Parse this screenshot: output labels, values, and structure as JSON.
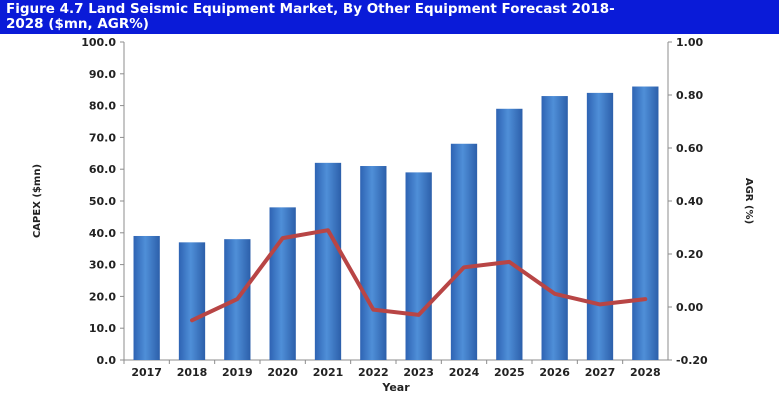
{
  "header": {
    "title": "Figure 4.7 Land Seismic Equipment Market, By Other Equipment Forecast 2018-\n2028 ($mn, AGR%)"
  },
  "colors": {
    "header_bg": "#0a1bd8",
    "bar": "#3a78c8",
    "line": "#b84545"
  },
  "chart_data": {
    "type": "bar",
    "title": "Figure 4.7 Land Seismic Equipment Market, By Other Equipment Forecast 2018-2028 ($mn, AGR%)",
    "xlabel": "Year",
    "ylabel": "CAPEX ($mn)",
    "y2label": "AGR (%)",
    "categories": [
      "2017",
      "2018",
      "2019",
      "2020",
      "2021",
      "2022",
      "2023",
      "2024",
      "2025",
      "2026",
      "2027",
      "2028"
    ],
    "series": [
      {
        "chart": "bar",
        "axis": "left",
        "values": [
          39.0,
          37.0,
          38.0,
          48.0,
          62.0,
          61.0,
          59.0,
          68.0,
          79.0,
          83.0,
          84.0,
          86.0
        ]
      },
      {
        "chart": "line",
        "axis": "right",
        "values": [
          null,
          -0.05,
          0.03,
          0.26,
          0.29,
          -0.01,
          -0.03,
          0.15,
          0.17,
          0.05,
          0.01,
          0.03
        ]
      }
    ],
    "ylim": [
      0,
      100
    ],
    "y2lim": [
      -0.2,
      1.0
    ],
    "yticks": [
      "0.0",
      "10.0",
      "20.0",
      "30.0",
      "40.0",
      "50.0",
      "60.0",
      "70.0",
      "80.0",
      "90.0",
      "100.0"
    ],
    "y2ticks": [
      "-0.20",
      "0.00",
      "0.20",
      "0.40",
      "0.60",
      "0.80",
      "1.00"
    ],
    "grid": false,
    "legend": "none"
  }
}
